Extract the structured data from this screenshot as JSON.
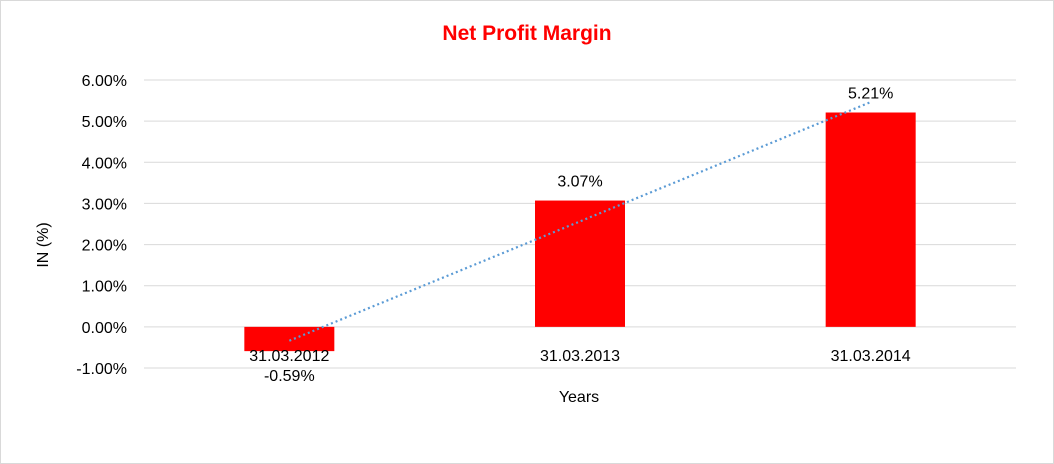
{
  "chart_data": {
    "type": "bar",
    "title": "Net Profit Margin",
    "xlabel": "Years",
    "ylabel": "IN (%)",
    "categories": [
      "31.03.2012",
      "31.03.2013",
      "31.03.2014"
    ],
    "values": [
      -0.59,
      3.07,
      5.21
    ],
    "data_labels": [
      "-0.59%",
      "3.07%",
      "5.21%"
    ],
    "y_ticks": [
      -1,
      0,
      1,
      2,
      3,
      4,
      5,
      6
    ],
    "y_tick_labels": [
      "-1.00%",
      "0.00%",
      "1.00%",
      "2.00%",
      "3.00%",
      "4.00%",
      "5.00%",
      "6.00%"
    ],
    "ylim": [
      -1,
      6
    ],
    "grid": true,
    "legend": "none",
    "trendline": "linear",
    "colors": {
      "bar": "#ff0000",
      "title": "#ff0000",
      "trendline": "#5b9bd5",
      "grid": "#d9d9d9"
    }
  }
}
